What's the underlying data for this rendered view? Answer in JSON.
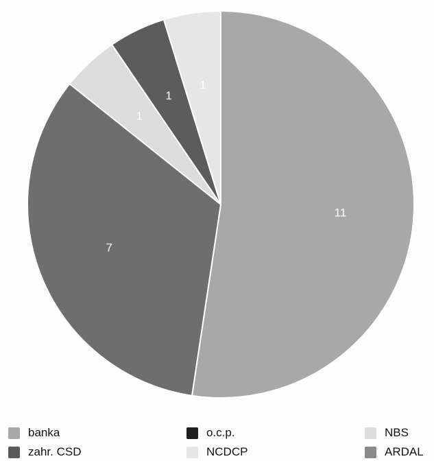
{
  "chart_data": {
    "type": "pie",
    "title": "",
    "start": "12 o'clock",
    "direction": "clockwise",
    "legend_position": "bottom",
    "slices": [
      {
        "name": "banka",
        "value": 11,
        "label": "11",
        "color": "#a8a8a8"
      },
      {
        "name": "zahr. CSD",
        "value": 7,
        "label": "7",
        "color": "#6e6e6e"
      },
      {
        "name": "NBS",
        "value": 1,
        "label": "1",
        "color": "#dcdcdc"
      },
      {
        "name": "o.c.p.",
        "value": 1,
        "label": "1",
        "color": "#5c5c5c"
      },
      {
        "name": "NCDCP",
        "value": 1,
        "label": "1",
        "color": "#e6e6e6"
      }
    ],
    "legend": [
      {
        "name": "banka",
        "color": "#a8a8a8"
      },
      {
        "name": "o.c.p.",
        "color": "#1e1e1e"
      },
      {
        "name": "NBS",
        "color": "#dcdcdc"
      },
      {
        "name": "zahr. CSD",
        "color": "#5a5a5a"
      },
      {
        "name": "NCDCP",
        "color": "#e6e6e6"
      },
      {
        "name": "ARDAL",
        "color": "#8a8a8a"
      }
    ]
  }
}
